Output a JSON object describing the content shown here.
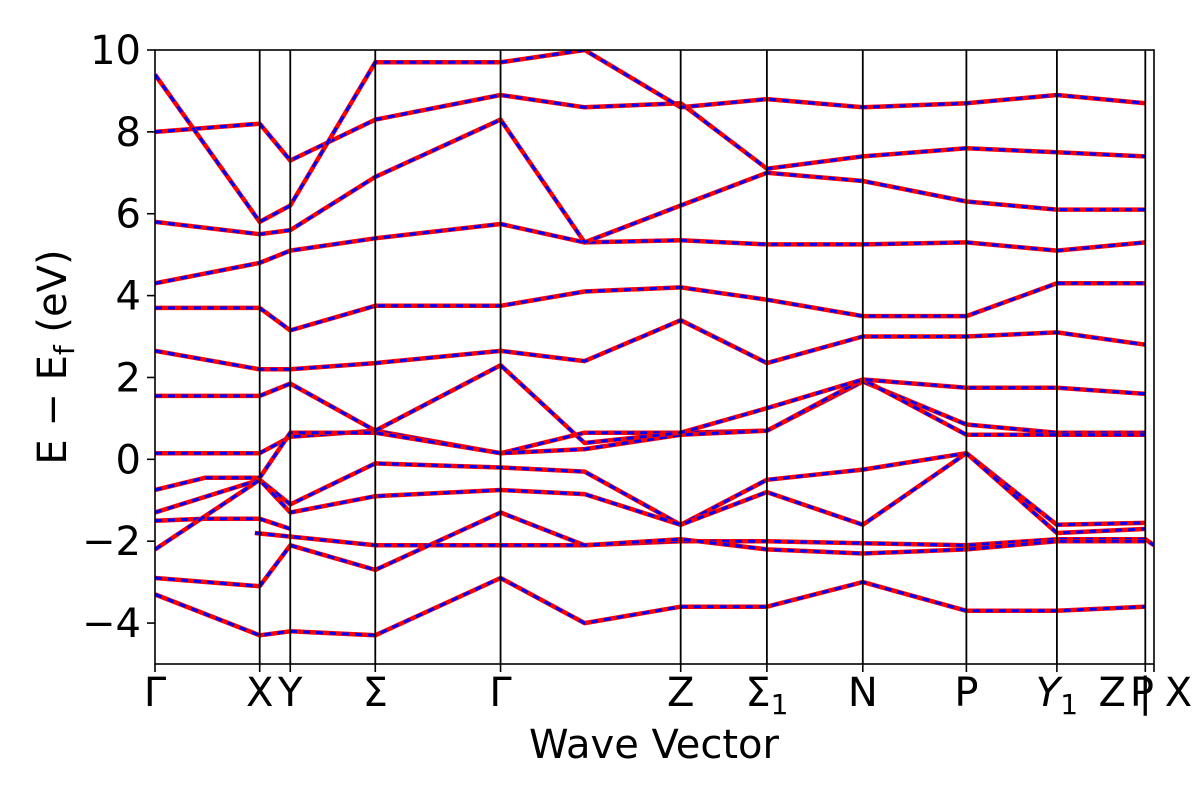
{
  "chart_data": {
    "type": "line",
    "xlabel": "Wave Vector",
    "ylabel_parts": {
      "main": "E − E",
      "sub": "f",
      "tail": " (eV)"
    },
    "ylim": [
      -5,
      10
    ],
    "yticks": [
      -4,
      -2,
      0,
      2,
      4,
      6,
      8,
      10
    ],
    "ytick_labels": [
      "−4",
      "−2",
      "0",
      "2",
      "4",
      "6",
      "8",
      "10"
    ],
    "xlim": [
      0,
      1
    ],
    "high_symmetry_points": [
      {
        "label": "Γ",
        "x": 0.0
      },
      {
        "label": "X",
        "x": 0.1048
      },
      {
        "label": "Y",
        "x": 0.1354
      },
      {
        "label": "Σ",
        "x": 0.2205
      },
      {
        "label": "Γ",
        "x": 0.3459
      },
      {
        "label": "Z",
        "x": 0.5262
      },
      {
        "label": "Σ1",
        "x": 0.6125
      },
      {
        "label": "N",
        "x": 0.7085
      },
      {
        "label": "P",
        "x": 0.8122
      },
      {
        "label": "Y1",
        "x": 0.9028
      },
      {
        "label": "Z | X",
        "x": 0.9913
      },
      {
        "label": "P",
        "x": 1.0
      }
    ],
    "vertical_lines_at": [
      0.1048,
      0.1354,
      0.2205,
      0.3459,
      0.5262,
      0.6125,
      0.7085,
      0.8122,
      0.9028,
      0.9913
    ],
    "series_styles": [
      {
        "color": "#ff0000",
        "style": "solid"
      },
      {
        "color": "#0000ff",
        "style": "dashed"
      }
    ],
    "bands": [
      {
        "x": [
          0,
          0.05,
          0.1048,
          0.1354,
          0.1,
          0.2205,
          0.3459,
          0.43,
          0.5262,
          0.6125,
          0.7085,
          0.8122,
          0.9028,
          0.9913,
          1.0
        ],
        "y": [
          -1.5,
          -1.45,
          -1.45,
          -1.7,
          -1.8,
          -2.1,
          -2.1,
          -2.1,
          -2.0,
          -2.0,
          -2.05,
          -2.1,
          -1.95,
          -1.95,
          -2.1
        ]
      },
      {
        "x": [
          0,
          0.1048,
          0.1354,
          0.2205,
          0.3459,
          0.43,
          0.5262,
          0.6125,
          0.7085,
          0.8122,
          0.9028,
          0.9913
        ],
        "y": [
          0.15,
          0.15,
          0.55,
          0.7,
          0.15,
          0.65,
          0.65,
          0.7,
          1.9,
          0.85,
          0.65,
          0.65
        ]
      },
      {
        "x": [
          0,
          0.05,
          0.1048,
          0.1354,
          0.2205,
          0.3459,
          0.43,
          0.5262,
          0.6125,
          0.7085,
          0.8122,
          0.9028,
          0.9913
        ],
        "y": [
          -0.75,
          -0.45,
          -0.45,
          0.65,
          0.65,
          0.15,
          0.25,
          0.6,
          0.7,
          1.95,
          0.6,
          0.6,
          0.6
        ]
      },
      {
        "x": [
          0,
          0.1048,
          0.1354,
          0.2205,
          0.3459,
          0.43,
          0.5262,
          0.6125,
          0.7085,
          0.8122,
          0.9028,
          0.9913
        ],
        "y": [
          -1.3,
          -0.5,
          -1.1,
          -0.1,
          -0.2,
          -0.3,
          -1.6,
          -0.5,
          -0.25,
          0.15,
          -1.6,
          -1.55
        ]
      },
      {
        "x": [
          0,
          0.1048,
          0.1354,
          0.2205,
          0.3459,
          0.43,
          0.5262,
          0.6125,
          0.7085,
          0.8122,
          0.9028,
          0.9913
        ],
        "y": [
          -2.2,
          -0.5,
          -1.3,
          -0.9,
          -0.75,
          -0.85,
          -1.6,
          -0.8,
          -1.6,
          0.15,
          -1.8,
          -1.7
        ]
      },
      {
        "x": [
          0,
          0.1048,
          0.1354,
          0.2205,
          0.3459,
          0.43,
          0.5262,
          0.6125,
          0.7085,
          0.8122,
          0.9028,
          0.9913
        ],
        "y": [
          -2.9,
          -3.1,
          -2.1,
          -2.7,
          -1.3,
          -2.1,
          -1.95,
          -2.2,
          -2.3,
          -2.2,
          -2.0,
          -2.0
        ]
      },
      {
        "x": [
          0,
          0.1048,
          0.1354,
          0.2205,
          0.3459,
          0.43,
          0.5262,
          0.6125,
          0.7085,
          0.8122,
          0.9028,
          0.9913
        ],
        "y": [
          -3.3,
          -4.3,
          -4.2,
          -4.3,
          -2.9,
          -4.0,
          -3.6,
          -3.6,
          -3.0,
          -3.7,
          -3.7,
          -3.6
        ]
      },
      {
        "x": [
          0,
          0.1048,
          0.1354,
          0.2205,
          0.3459,
          0.43,
          0.5262,
          0.6125,
          0.7085,
          0.8122,
          0.9028,
          0.9913
        ],
        "y": [
          1.55,
          1.55,
          1.85,
          0.7,
          2.3,
          0.4,
          0.65,
          1.25,
          1.95,
          1.75,
          1.75,
          1.6
        ]
      },
      {
        "x": [
          0,
          0.1048,
          0.1354,
          0.2205,
          0.3459,
          0.43,
          0.5262,
          0.6125,
          0.7085,
          0.8122,
          0.9028,
          0.9913
        ],
        "y": [
          2.65,
          2.2,
          2.2,
          2.35,
          2.65,
          2.4,
          3.4,
          2.35,
          3.0,
          3.0,
          3.1,
          2.8
        ]
      },
      {
        "x": [
          0,
          0.1048,
          0.1354,
          0.2205,
          0.3459,
          0.43,
          0.5262,
          0.6125,
          0.7085,
          0.8122,
          0.9028,
          0.9913
        ],
        "y": [
          3.7,
          3.7,
          3.15,
          3.75,
          3.75,
          4.1,
          4.2,
          3.9,
          3.5,
          3.5,
          4.3,
          4.3
        ]
      },
      {
        "x": [
          0,
          0.1048,
          0.1354,
          0.2205,
          0.3459,
          0.43,
          0.5262,
          0.6125,
          0.7085,
          0.8122,
          0.9028,
          0.9913
        ],
        "y": [
          4.3,
          4.8,
          5.1,
          5.4,
          5.75,
          5.3,
          5.35,
          5.25,
          5.25,
          5.3,
          5.1,
          5.3
        ]
      },
      {
        "x": [
          0,
          0.1048,
          0.1354,
          0.2205,
          0.3459,
          0.43,
          0.5262,
          0.6125,
          0.7085,
          0.8122,
          0.9028,
          0.9913
        ],
        "y": [
          5.8,
          5.5,
          5.6,
          6.9,
          8.3,
          5.3,
          6.2,
          7.0,
          6.8,
          6.3,
          6.1,
          6.1
        ]
      },
      {
        "x": [
          0,
          0.1048,
          0.1354,
          0.2205,
          0.3459,
          0.43,
          0.5262,
          0.6125,
          0.7085,
          0.8122,
          0.9028,
          0.9913
        ],
        "y": [
          8.0,
          8.2,
          7.3,
          8.3,
          8.9,
          8.6,
          8.7,
          7.1,
          7.4,
          7.6,
          7.5,
          7.4
        ]
      },
      {
        "x": [
          0,
          0.1048,
          0.1354,
          0.2205,
          0.3459,
          0.43,
          0.5262,
          0.6125,
          0.7085,
          0.8122,
          0.9028,
          0.9913
        ],
        "y": [
          9.4,
          5.8,
          6.2,
          9.7,
          9.7,
          10.0,
          8.6,
          8.8,
          8.6,
          8.7,
          8.9,
          8.7
        ]
      }
    ]
  }
}
